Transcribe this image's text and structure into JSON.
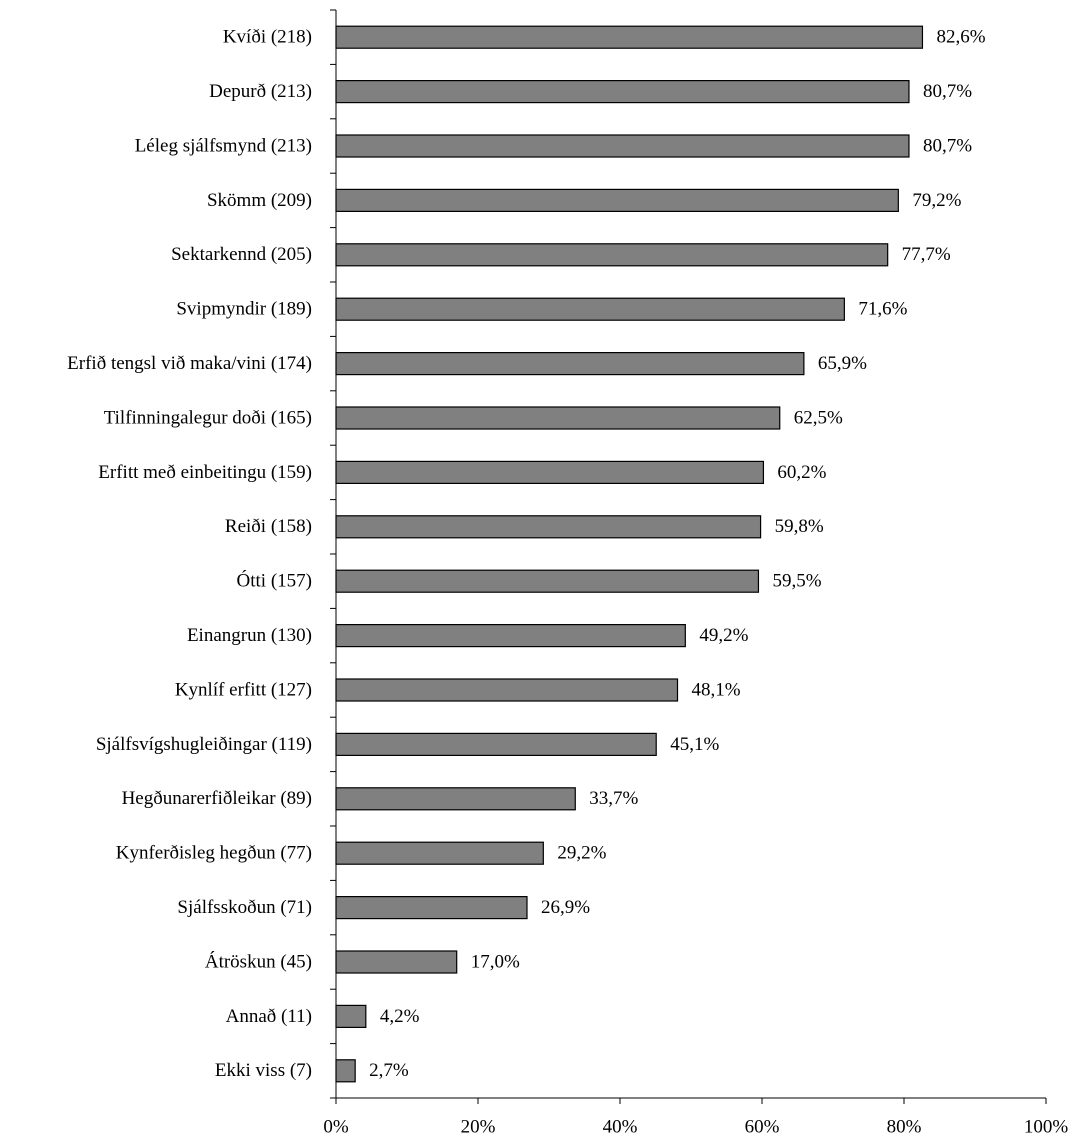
{
  "chart_data": {
    "type": "barh",
    "categories": [
      "Kvíði (218)",
      "Depurð (213)",
      "Léleg sjálfsmynd (213)",
      "Skömm (209)",
      "Sektarkennd (205)",
      "Svipmyndir (189)",
      "Erfið tengsl við maka/vini (174)",
      "Tilfinningalegur doði (165)",
      "Erfitt með einbeitingu (159)",
      "Reiði (158)",
      "Ótti (157)",
      "Einangrun (130)",
      "Kynlíf erfitt (127)",
      "Sjálfsvígshugleiðingar (119)",
      "Hegðunarerfiðleikar (89)",
      "Kynferðisleg hegðun (77)",
      "Sjálfsskoðun (71)",
      "Átröskun (45)",
      "Annað (11)",
      "Ekki viss (7)"
    ],
    "values": [
      82.6,
      80.7,
      80.7,
      79.2,
      77.7,
      71.6,
      65.9,
      62.5,
      60.2,
      59.8,
      59.5,
      49.2,
      48.1,
      45.1,
      33.7,
      29.2,
      26.9,
      17.0,
      4.2,
      2.7
    ],
    "value_labels": [
      "82,6%",
      "80,7%",
      "80,7%",
      "79,2%",
      "77,7%",
      "71,6%",
      "65,9%",
      "62,5%",
      "60,2%",
      "59,8%",
      "59,5%",
      "49,2%",
      "48,1%",
      "45,1%",
      "33,7%",
      "29,2%",
      "26,9%",
      "17,0%",
      "4,2%",
      "2,7%"
    ],
    "color": "#808080",
    "xlim": [
      0,
      100
    ],
    "xticks": [
      {
        "value": 0,
        "label": "0%"
      },
      {
        "value": 20,
        "label": "20%"
      },
      {
        "value": 40,
        "label": "40%"
      },
      {
        "value": 60,
        "label": "60%"
      },
      {
        "value": 80,
        "label": "80%"
      },
      {
        "value": 100,
        "label": "100%"
      }
    ]
  }
}
